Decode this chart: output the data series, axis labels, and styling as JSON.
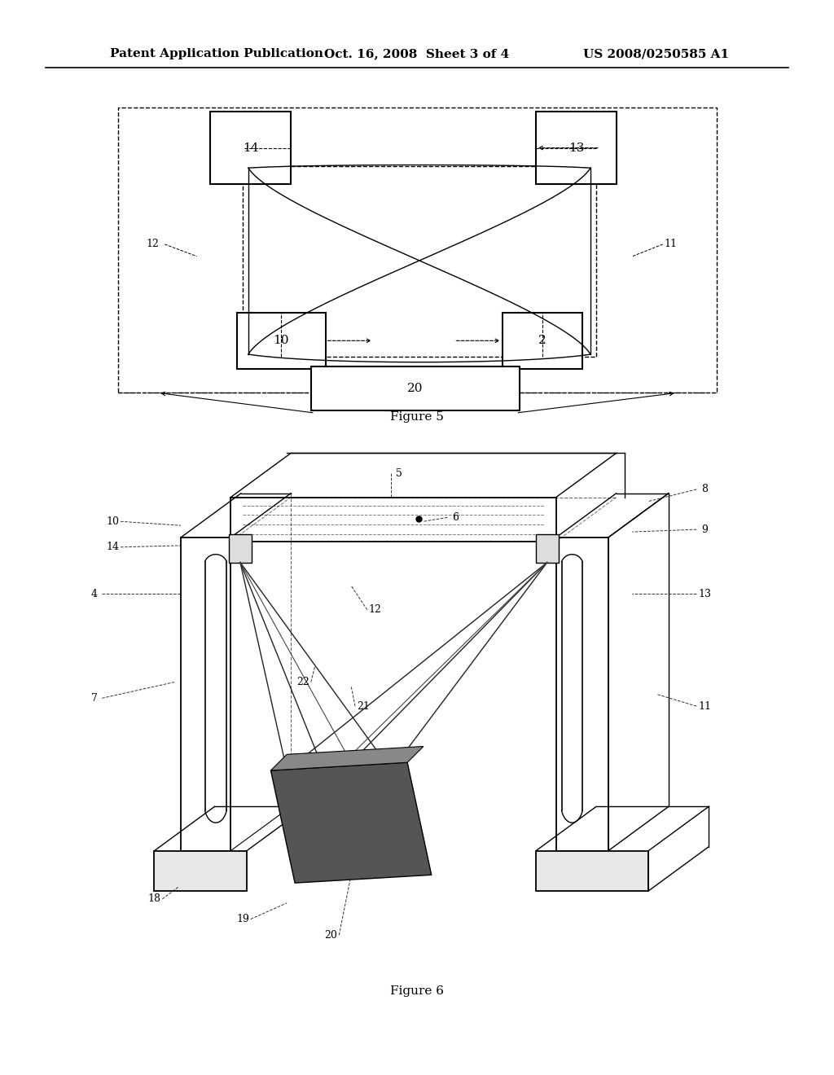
{
  "bg_color": "#ffffff",
  "header_left": "Patent Application Publication",
  "header_mid": "Oct. 16, 2008  Sheet 3 of 4",
  "header_right": "US 2008/0250585 A1",
  "fig5_caption": "Figure 5",
  "fig6_caption": "Figure 6"
}
